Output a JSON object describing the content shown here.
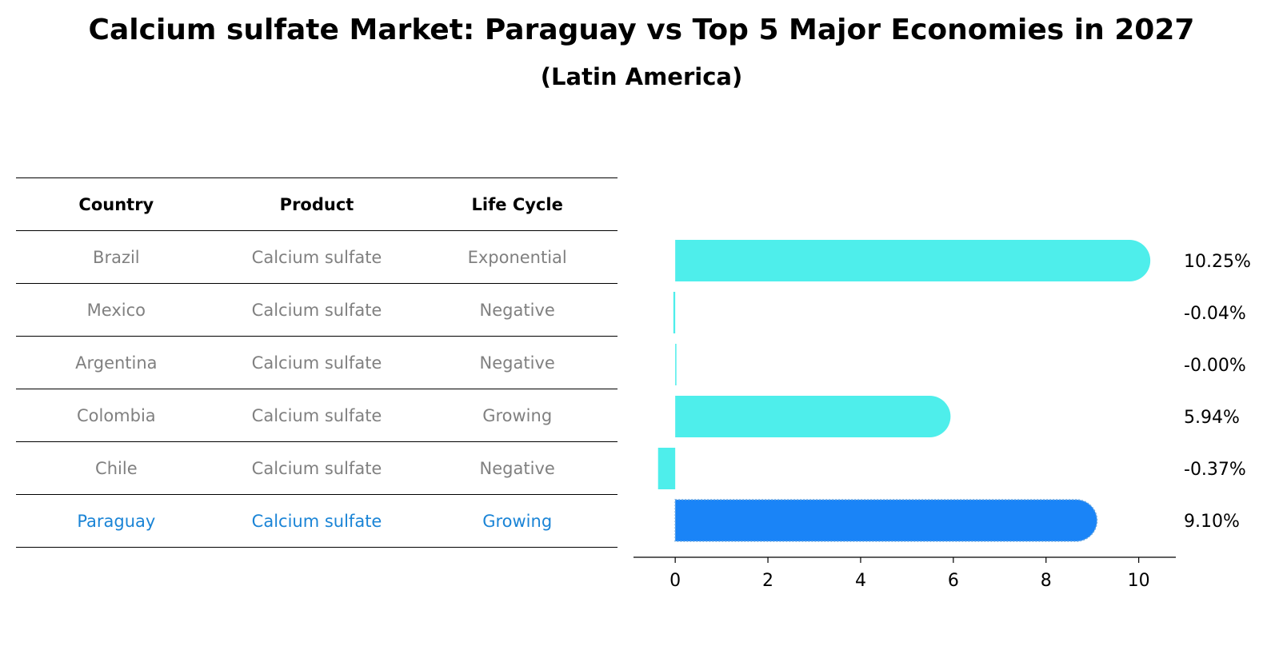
{
  "title": "Calcium sulfate Market: Paraguay vs Top 5 Major Economies in 2027",
  "subtitle": "(Latin America)",
  "table": {
    "headers": [
      "Country",
      "Product",
      "Life Cycle"
    ],
    "rows": [
      {
        "country": "Brazil",
        "product": "Calcium sulfate",
        "life_cycle": "Exponential"
      },
      {
        "country": "Mexico",
        "product": "Calcium sulfate",
        "life_cycle": "Negative"
      },
      {
        "country": "Argentina",
        "product": "Calcium sulfate",
        "life_cycle": "Negative"
      },
      {
        "country": "Colombia",
        "product": "Calcium sulfate",
        "life_cycle": "Growing"
      },
      {
        "country": "Chile",
        "product": "Calcium sulfate",
        "life_cycle": "Negative"
      },
      {
        "country": "Paraguay",
        "product": "Calcium sulfate",
        "life_cycle": "Growing"
      }
    ]
  },
  "chart_data": {
    "type": "bar",
    "orientation": "horizontal",
    "categories": [
      "Brazil",
      "Mexico",
      "Argentina",
      "Colombia",
      "Chile",
      "Paraguay"
    ],
    "values": [
      10.25,
      -0.04,
      -0.0,
      5.94,
      -0.37,
      9.1
    ],
    "value_labels": [
      "10.25%",
      "-0.04%",
      "-0.00%",
      "5.94%",
      "-0.37%",
      "9.10%"
    ],
    "highlight": "Paraguay",
    "xlim": [
      -0.9,
      10.8
    ],
    "xticks": [
      0,
      2,
      4,
      6,
      8,
      10
    ],
    "tick_labels": [
      "0",
      "2",
      "4",
      "6",
      "8",
      "10"
    ],
    "xlabel": "",
    "ylabel": "",
    "grid": false,
    "colors": {
      "bar": "#4eeeeb",
      "highlight_bar": "#1a84f7",
      "highlight_text": "#1a84d6",
      "muted_text": "#808080"
    }
  }
}
